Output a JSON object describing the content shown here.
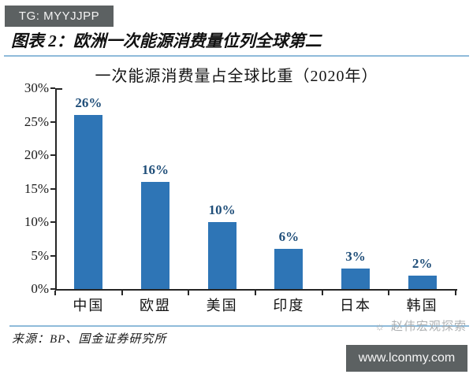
{
  "watermarks": {
    "top_badge": "TG: MYYJJPP",
    "brand": "赵伟宏观探索",
    "brand_icon": "sun-icon",
    "site_url": "www.lconmy.com"
  },
  "header": {
    "caption": "图表 2：欧洲一次能源消费量位列全球第二"
  },
  "footer": {
    "source": "来源：BP、国金证券研究所"
  },
  "chart_data": {
    "type": "bar",
    "title": "一次能源消费量占全球比重（2020年）",
    "categories": [
      "中国",
      "欧盟",
      "美国",
      "印度",
      "日本",
      "韩国"
    ],
    "values": [
      26,
      16,
      10,
      6,
      3,
      2
    ],
    "value_labels": [
      "26%",
      "16%",
      "10%",
      "6%",
      "3%",
      "2%"
    ],
    "xlabel": "",
    "ylabel": "",
    "ylim": [
      0,
      30
    ],
    "ytick_step": 5,
    "ytick_suffix": "%",
    "grid": false,
    "legend": false,
    "bar_color": "#2E75B6",
    "value_label_color": "#1F4E79",
    "axis_color": "#262626"
  },
  "colors": {
    "accent_divider": "#8FBBDA",
    "badge_background": "#5C6162",
    "watermark_gray": "#A9ACAE"
  }
}
